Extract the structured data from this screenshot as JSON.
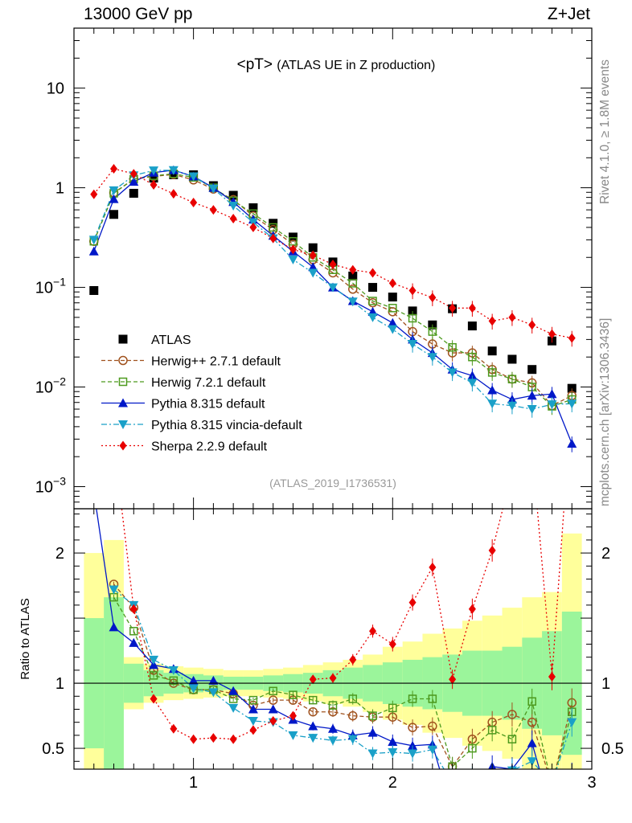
{
  "header": {
    "left": "13000 GeV pp",
    "right": "Z+Jet"
  },
  "side_labels": {
    "rivet": "Rivet 4.1.0, ≥ 1.8M events",
    "mcplots": "mcplots.cern.ch [arXiv:1306.3436]"
  },
  "chart_data": [
    {
      "type": "scatter",
      "panel": "main",
      "title": "<pT> (ATLAS UE in Z production)",
      "title_main": "<pT>",
      "title_sub": "(ATLAS UE in Z production)",
      "analysis_label": "(ATLAS_2019_I1736531)",
      "ylabel": "",
      "yscale": "log",
      "ylim": [
        0.0006,
        40
      ],
      "xlim": [
        0.4,
        3.0
      ],
      "y_ticks": [
        {
          "value": 10,
          "label": "10"
        },
        {
          "value": 1,
          "label": "1"
        },
        {
          "value": 0.1,
          "label": "10",
          "exp": "−1"
        },
        {
          "value": 0.01,
          "label": "10",
          "exp": "−2"
        },
        {
          "value": 0.001,
          "label": "10",
          "exp": "−3"
        }
      ],
      "legend_position": "lower-left",
      "series": [
        {
          "name": "ATLAS",
          "color": "#000000",
          "marker": "square",
          "line": "none",
          "x": [
            0.5,
            0.6,
            0.7,
            0.8,
            0.9,
            1.0,
            1.1,
            1.2,
            1.3,
            1.4,
            1.5,
            1.6,
            1.7,
            1.8,
            1.9,
            2.0,
            2.1,
            2.2,
            2.3,
            2.4,
            2.5,
            2.6,
            2.7,
            2.8,
            2.9
          ],
          "y": [
            0.093,
            0.54,
            0.88,
            1.25,
            1.35,
            1.35,
            1.05,
            0.84,
            0.63,
            0.44,
            0.32,
            0.25,
            0.18,
            0.13,
            0.1,
            0.08,
            0.058,
            0.042,
            0.061,
            0.041,
            0.023,
            0.019,
            0.015,
            0.029,
            0.0097
          ]
        },
        {
          "name": "Herwig++ 2.7.1 default",
          "color": "#a0521e",
          "marker": "circle-open",
          "line": "dashed",
          "x": [
            0.5,
            0.6,
            0.7,
            0.8,
            0.9,
            1.0,
            1.1,
            1.2,
            1.3,
            1.4,
            1.5,
            1.6,
            1.7,
            1.8,
            1.9,
            2.0,
            2.1,
            2.2,
            2.3,
            2.4,
            2.5,
            2.6,
            2.7,
            2.8,
            2.9
          ],
          "y": [
            0.29,
            0.89,
            1.22,
            1.3,
            1.36,
            1.2,
            0.97,
            0.76,
            0.52,
            0.38,
            0.27,
            0.19,
            0.14,
            0.096,
            0.07,
            0.057,
            0.036,
            0.027,
            0.022,
            0.022,
            0.015,
            0.012,
            0.011,
            0.0065,
            0.0082
          ]
        },
        {
          "name": "Herwig 7.2.1 default",
          "color": "#4d9a1e",
          "marker": "square-open",
          "line": "dashed",
          "x": [
            0.5,
            0.6,
            0.7,
            0.8,
            0.9,
            1.0,
            1.1,
            1.2,
            1.3,
            1.4,
            1.5,
            1.6,
            1.7,
            1.8,
            1.9,
            2.0,
            2.1,
            2.2,
            2.3,
            2.4,
            2.5,
            2.6,
            2.7,
            2.8,
            2.9
          ],
          "y": [
            0.29,
            0.88,
            1.22,
            1.32,
            1.38,
            1.27,
            1.0,
            0.74,
            0.55,
            0.4,
            0.29,
            0.2,
            0.15,
            0.11,
            0.073,
            0.062,
            0.049,
            0.036,
            0.025,
            0.02,
            0.014,
            0.012,
            0.01,
            0.0064,
            0.0075
          ]
        },
        {
          "name": "Pythia 8.315 default",
          "color": "#0018c8",
          "marker": "triangle-up",
          "line": "solid",
          "x": [
            0.5,
            0.6,
            0.7,
            0.8,
            0.9,
            1.0,
            1.1,
            1.2,
            1.3,
            1.4,
            1.5,
            1.6,
            1.7,
            1.8,
            1.9,
            2.0,
            2.1,
            2.2,
            2.3,
            2.4,
            2.5,
            2.6,
            2.7,
            2.8,
            2.9
          ],
          "y": [
            0.23,
            0.77,
            1.15,
            1.42,
            1.5,
            1.3,
            1.0,
            0.72,
            0.48,
            0.33,
            0.23,
            0.16,
            0.1,
            0.073,
            0.057,
            0.044,
            0.03,
            0.022,
            0.015,
            0.013,
            0.0093,
            0.0075,
            0.0082,
            0.0085,
            0.0027
          ]
        },
        {
          "name": "Pythia 8.315 vincia-default",
          "color": "#1aa0c8",
          "marker": "triangle-down",
          "line": "dashdot",
          "x": [
            0.5,
            0.6,
            0.7,
            0.8,
            0.9,
            1.0,
            1.1,
            1.2,
            1.3,
            1.4,
            1.5,
            1.6,
            1.7,
            1.8,
            1.9,
            2.0,
            2.1,
            2.2,
            2.3,
            2.4,
            2.5,
            2.6,
            2.7,
            2.8,
            2.9
          ],
          "y": [
            0.3,
            0.94,
            1.33,
            1.49,
            1.5,
            1.3,
            0.98,
            0.66,
            0.45,
            0.31,
            0.19,
            0.14,
            0.1,
            0.072,
            0.05,
            0.038,
            0.027,
            0.02,
            0.014,
            0.011,
            0.0068,
            0.0065,
            0.006,
            0.0067,
            0.0068
          ]
        },
        {
          "name": "Sherpa 2.2.9 default",
          "color": "#e80000",
          "marker": "diamond",
          "line": "dotted",
          "x": [
            0.5,
            0.6,
            0.7,
            0.8,
            0.9,
            1.0,
            1.1,
            1.2,
            1.3,
            1.4,
            1.5,
            1.6,
            1.7,
            1.8,
            1.9,
            2.0,
            2.1,
            2.2,
            2.3,
            2.4,
            2.5,
            2.6,
            2.7,
            2.8,
            2.9
          ],
          "y": [
            0.86,
            1.55,
            1.38,
            1.07,
            0.87,
            0.71,
            0.6,
            0.49,
            0.4,
            0.31,
            0.24,
            0.21,
            0.17,
            0.15,
            0.14,
            0.11,
            0.093,
            0.079,
            0.062,
            0.062,
            0.046,
            0.05,
            0.042,
            0.034,
            0.031
          ]
        }
      ]
    },
    {
      "type": "scatter",
      "panel": "ratio",
      "ylabel": "Ratio to ATLAS",
      "xlabel": "",
      "xlim": [
        0.4,
        3.0
      ],
      "ylim": [
        0.34,
        2.34
      ],
      "x_ticks": [
        1,
        2,
        3
      ],
      "y_ticks_left": [
        {
          "value": 0.5,
          "label": "0.5"
        },
        {
          "value": 1,
          "label": "1"
        },
        {
          "value": 2,
          "label": "2"
        }
      ],
      "y_ticks_right": [
        {
          "value": 0.5,
          "label": "0.5"
        },
        {
          "value": 1,
          "label": "1"
        },
        {
          "value": 2,
          "label": "2"
        }
      ],
      "uncertainty_bands": {
        "x_edges": [
          0.45,
          0.55,
          0.65,
          0.75,
          0.85,
          0.95,
          1.05,
          1.15,
          1.25,
          1.35,
          1.45,
          1.55,
          1.65,
          1.75,
          1.85,
          1.95,
          2.05,
          2.15,
          2.25,
          2.35,
          2.45,
          2.55,
          2.65,
          2.75,
          2.85,
          2.95
        ],
        "green_lo": [
          0.5,
          0.34,
          0.85,
          0.9,
          0.92,
          0.93,
          0.94,
          0.95,
          0.95,
          0.94,
          0.93,
          0.92,
          0.9,
          0.88,
          0.86,
          0.84,
          0.82,
          0.8,
          0.78,
          0.75,
          0.75,
          0.72,
          0.65,
          0.6,
          0.45
        ],
        "green_hi": [
          1.5,
          1.66,
          1.15,
          1.1,
          1.08,
          1.07,
          1.06,
          1.05,
          1.05,
          1.06,
          1.07,
          1.08,
          1.1,
          1.12,
          1.14,
          1.16,
          1.18,
          1.2,
          1.22,
          1.25,
          1.25,
          1.28,
          1.35,
          1.4,
          1.55
        ],
        "yellow_lo": [
          0.34,
          0.34,
          0.8,
          0.85,
          0.87,
          0.88,
          0.89,
          0.9,
          0.9,
          0.89,
          0.88,
          0.86,
          0.84,
          0.82,
          0.78,
          0.72,
          0.68,
          0.62,
          0.58,
          0.52,
          0.48,
          0.42,
          0.34,
          0.34,
          0.34
        ],
        "yellow_hi": [
          2.0,
          2.1,
          1.2,
          1.15,
          1.13,
          1.12,
          1.11,
          1.1,
          1.1,
          1.11,
          1.12,
          1.14,
          1.16,
          1.18,
          1.22,
          1.28,
          1.32,
          1.38,
          1.42,
          1.48,
          1.52,
          1.58,
          1.66,
          1.7,
          2.15
        ],
        "green_color": "#9bf59b",
        "yellow_color": "#ffff9b"
      },
      "series": [
        {
          "name": "Herwig++ 2.7.1 default",
          "color": "#a0521e",
          "x": [
            0.6,
            0.7,
            0.8,
            0.9,
            1.0,
            1.1,
            1.2,
            1.3,
            1.4,
            1.5,
            1.6,
            1.7,
            1.8,
            1.9,
            2.0,
            2.1,
            2.2,
            2.3,
            2.4,
            2.5,
            2.6,
            2.7,
            2.8,
            2.9
          ],
          "y": [
            1.76,
            1.58,
            1.1,
            1.0,
            0.95,
            0.95,
            0.92,
            0.83,
            0.87,
            0.87,
            0.78,
            0.78,
            0.75,
            0.74,
            0.74,
            0.66,
            0.67,
            0.36,
            0.57,
            0.7,
            0.76,
            0.7,
            0.22,
            0.85
          ]
        },
        {
          "name": "Herwig 7.2.1 default",
          "color": "#4d9a1e",
          "x": [
            0.6,
            0.7,
            0.8,
            0.9,
            1.0,
            1.1,
            1.2,
            1.3,
            1.4,
            1.5,
            1.6,
            1.7,
            1.8,
            1.9,
            2.0,
            2.1,
            2.2,
            2.3,
            2.4,
            2.5,
            2.6,
            2.7,
            2.8,
            2.9
          ],
          "y": [
            1.66,
            1.4,
            1.06,
            1.02,
            0.95,
            0.95,
            0.88,
            0.87,
            0.94,
            0.91,
            0.87,
            0.83,
            0.88,
            0.75,
            0.81,
            0.88,
            0.88,
            0.36,
            0.5,
            0.64,
            0.57,
            0.86,
            0.22,
            0.78
          ]
        },
        {
          "name": "Pythia 8.315 default",
          "color": "#0018c8",
          "x": [
            0.5,
            0.6,
            0.7,
            0.8,
            0.9,
            1.0,
            1.1,
            1.2,
            1.3,
            1.4,
            1.5,
            1.6,
            1.7,
            1.8,
            1.9,
            2.0,
            2.1,
            2.2,
            2.3,
            2.4,
            2.5,
            2.6,
            2.7,
            2.8,
            2.9
          ],
          "y": [
            2.47,
            1.43,
            1.31,
            1.14,
            1.11,
            1.02,
            1.02,
            0.94,
            0.8,
            0.8,
            0.72,
            0.67,
            0.65,
            0.6,
            0.62,
            0.55,
            0.52,
            0.53,
            0.0,
            0.0,
            0.36,
            0.34,
            0.54,
            0.0,
            0.28
          ]
        },
        {
          "name": "Pythia 8.315 vincia-default",
          "color": "#1aa0c8",
          "x": [
            0.6,
            0.7,
            0.8,
            0.9,
            1.0,
            1.1,
            1.2,
            1.3,
            1.4,
            1.5,
            1.6,
            1.7,
            1.8,
            1.9,
            2.0,
            2.1,
            2.2,
            2.3,
            2.4,
            2.5,
            2.6,
            2.7,
            2.8,
            2.9
          ],
          "y": [
            1.72,
            1.6,
            1.18,
            1.1,
            0.96,
            0.93,
            0.81,
            0.71,
            0.7,
            0.6,
            0.58,
            0.56,
            0.57,
            0.46,
            0.47,
            0.46,
            0.49,
            0.23,
            0.28,
            0.3,
            0.33,
            0.4,
            0.23,
            0.7
          ]
        },
        {
          "name": "Sherpa 2.2.9 default",
          "color": "#e80000",
          "x": [
            0.5,
            0.6,
            0.7,
            0.8,
            0.9,
            1.0,
            1.1,
            1.2,
            1.3,
            1.4,
            1.5,
            1.6,
            1.7,
            1.8,
            1.9,
            2.0,
            2.1,
            2.2,
            2.3,
            2.4,
            2.5,
            2.6,
            2.7,
            2.8,
            2.9
          ],
          "y": [
            9.0,
            2.85,
            1.57,
            0.88,
            0.65,
            0.57,
            0.58,
            0.57,
            0.64,
            0.71,
            0.75,
            1.03,
            1.04,
            1.18,
            1.4,
            1.3,
            1.62,
            1.89,
            1.03,
            1.57,
            2.02,
            2.62,
            2.8,
            1.05,
            3.2
          ]
        }
      ]
    }
  ]
}
